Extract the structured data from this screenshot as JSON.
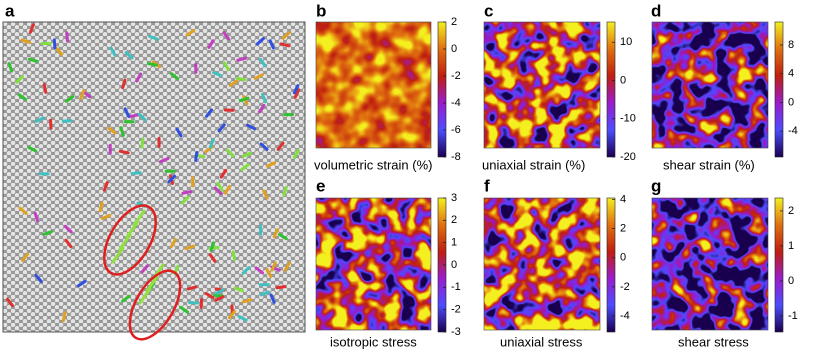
{
  "panels": [
    {
      "label": "a"
    },
    {
      "label": "b",
      "caption": "volumetric strain (%)",
      "colorbar": {
        "lim": [
          -8,
          2
        ],
        "ticks": [
          2,
          0,
          -2,
          -4,
          -6,
          -8
        ]
      }
    },
    {
      "label": "c",
      "caption": "uniaxial strain (%)",
      "colorbar": {
        "lim": [
          -20,
          15.3
        ],
        "ticks": [
          10,
          0,
          -10,
          -20
        ]
      }
    },
    {
      "label": "d",
      "caption": "shear strain (%)",
      "colorbar": {
        "lim": [
          -7.6,
          11.2
        ],
        "ticks": [
          8,
          4,
          0,
          -4
        ]
      }
    },
    {
      "label": "e",
      "caption": "isotropic stress",
      "colorbar": {
        "lim": [
          -3,
          3
        ],
        "ticks": [
          3,
          2,
          1,
          0,
          -1,
          -2,
          -3
        ]
      }
    },
    {
      "label": "f",
      "caption": "uniaxial stress",
      "colorbar": {
        "lim": [
          -5.1,
          4.1
        ],
        "ticks": [
          4,
          2,
          0,
          -2,
          -4
        ]
      }
    },
    {
      "label": "g",
      "caption": "shear stress",
      "colorbar": {
        "lim": [
          -1.46,
          2.37
        ],
        "ticks": [
          2,
          1,
          0,
          -1
        ]
      }
    }
  ]
}
